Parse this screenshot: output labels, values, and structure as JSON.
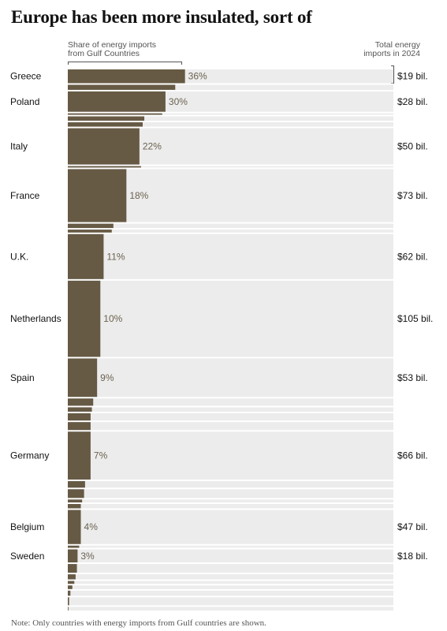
{
  "title": "Europe has been more insulated, sort of",
  "header": {
    "left_line1": "Share of energy imports",
    "left_line2": "from Gulf Countries",
    "right_line1": "Total energy",
    "right_line2": "imports in 2024"
  },
  "note": "Note: Only countries with energy imports from Gulf countries are shown.",
  "colors": {
    "bar": "#665a45",
    "track": "#ececec",
    "label": "#6b6250"
  },
  "chart_data": {
    "type": "bar",
    "orientation": "horizontal",
    "xlim": [
      0,
      100
    ],
    "unit_left": "Share of energy imports from Gulf Countries (%)",
    "unit_right": "Total energy imports in 2024",
    "rows": [
      {
        "country": "Greece",
        "share": 36,
        "share_label": "36%",
        "total_bil": 19,
        "total_label": "$19 bil."
      },
      {
        "country": "",
        "share": 33,
        "share_label": "",
        "total_bil": 7,
        "total_label": ""
      },
      {
        "country": "Poland",
        "share": 30,
        "share_label": "30%",
        "total_bil": 28,
        "total_label": "$28 bil."
      },
      {
        "country": "",
        "share": 29,
        "share_label": "",
        "total_bil": 2,
        "total_label": ""
      },
      {
        "country": "",
        "share": 23.5,
        "share_label": "",
        "total_bil": 6,
        "total_label": ""
      },
      {
        "country": "",
        "share": 23,
        "share_label": "",
        "total_bil": 6,
        "total_label": ""
      },
      {
        "country": "Italy",
        "share": 22,
        "share_label": "22%",
        "total_bil": 50,
        "total_label": "$50 bil."
      },
      {
        "country": "",
        "share": 22.5,
        "share_label": "",
        "total_bil": 2,
        "total_label": ""
      },
      {
        "country": "France",
        "share": 18,
        "share_label": "18%",
        "total_bil": 73,
        "total_label": "$73 bil."
      },
      {
        "country": "",
        "share": 14,
        "share_label": "",
        "total_bil": 6,
        "total_label": ""
      },
      {
        "country": "",
        "share": 13.5,
        "share_label": "",
        "total_bil": 4,
        "total_label": ""
      },
      {
        "country": "U.K.",
        "share": 11,
        "share_label": "11%",
        "total_bil": 62,
        "total_label": "$62 bil."
      },
      {
        "country": "Netherlands",
        "share": 10,
        "share_label": "10%",
        "total_bil": 105,
        "total_label": "$105 bil."
      },
      {
        "country": "Spain",
        "share": 9,
        "share_label": "9%",
        "total_bil": 53,
        "total_label": "$53 bil."
      },
      {
        "country": "",
        "share": 7.8,
        "share_label": "",
        "total_bil": 10,
        "total_label": ""
      },
      {
        "country": "",
        "share": 7.4,
        "share_label": "",
        "total_bil": 6,
        "total_label": ""
      },
      {
        "country": "",
        "share": 7.0,
        "share_label": "",
        "total_bil": 10,
        "total_label": ""
      },
      {
        "country": "",
        "share": 7.0,
        "share_label": "",
        "total_bil": 11,
        "total_label": ""
      },
      {
        "country": "Germany",
        "share": 7,
        "share_label": "7%",
        "total_bil": 66,
        "total_label": "$66 bil."
      },
      {
        "country": "",
        "share": 5.3,
        "share_label": "",
        "total_bil": 9,
        "total_label": ""
      },
      {
        "country": "",
        "share": 5.0,
        "share_label": "",
        "total_bil": 12,
        "total_label": ""
      },
      {
        "country": "",
        "share": 4.4,
        "share_label": "",
        "total_bil": 4,
        "total_label": ""
      },
      {
        "country": "",
        "share": 4.0,
        "share_label": "",
        "total_bil": 6,
        "total_label": ""
      },
      {
        "country": "Belgium",
        "share": 4,
        "share_label": "4%",
        "total_bil": 47,
        "total_label": "$47 bil."
      },
      {
        "country": "",
        "share": 3.5,
        "share_label": "",
        "total_bil": 3,
        "total_label": ""
      },
      {
        "country": "Sweden",
        "share": 3,
        "share_label": "3%",
        "total_bil": 18,
        "total_label": "$18 bil."
      },
      {
        "country": "",
        "share": 2.8,
        "share_label": "",
        "total_bil": 12,
        "total_label": ""
      },
      {
        "country": "",
        "share": 2.4,
        "share_label": "",
        "total_bil": 7,
        "total_label": ""
      },
      {
        "country": "",
        "share": 2.0,
        "share_label": "",
        "total_bil": 4,
        "total_label": ""
      },
      {
        "country": "",
        "share": 1.4,
        "share_label": "",
        "total_bil": 5,
        "total_label": ""
      },
      {
        "country": "",
        "share": 0.8,
        "share_label": "",
        "total_bil": 7,
        "total_label": ""
      },
      {
        "country": "",
        "share": 0.4,
        "share_label": "",
        "total_bil": 11,
        "total_label": ""
      },
      {
        "country": "",
        "share": 0.2,
        "share_label": "",
        "total_bil": 5,
        "total_label": ""
      }
    ]
  }
}
